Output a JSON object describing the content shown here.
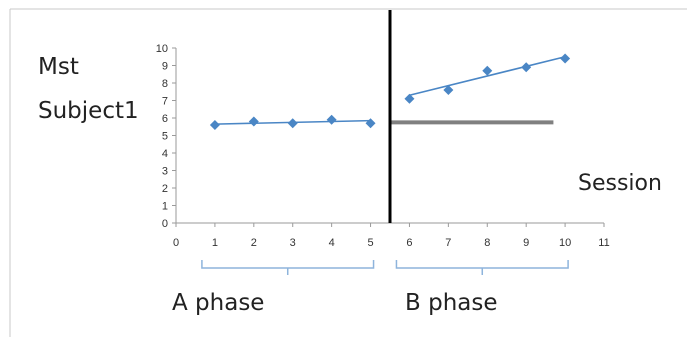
{
  "chart_data": {
    "type": "line",
    "ylabel_lines": [
      "Mst",
      "Subject1"
    ],
    "xlabel": "Session",
    "x_ticks": [
      0,
      1,
      2,
      3,
      4,
      5,
      6,
      7,
      8,
      9,
      10,
      11
    ],
    "y_ticks": [
      0,
      1,
      2,
      3,
      4,
      5,
      6,
      7,
      8,
      9,
      10
    ],
    "xlim": [
      0,
      11
    ],
    "ylim": [
      0,
      10
    ],
    "grid": false,
    "phase_change_x": 5.5,
    "series": [
      {
        "x": [
          1,
          2,
          3,
          4,
          5
        ],
        "values": [
          5.6,
          5.8,
          5.7,
          5.9,
          5.7
        ],
        "color": "#4a86c5"
      },
      {
        "x": [
          6,
          7,
          8,
          9,
          10
        ],
        "values": [
          7.1,
          7.6,
          8.7,
          8.9,
          9.4
        ],
        "color": "#4a86c5"
      }
    ],
    "trendlines": [
      {
        "x": [
          1,
          5
        ],
        "values": [
          5.65,
          5.85
        ],
        "color": "#4a86c5"
      },
      {
        "x": [
          6,
          10
        ],
        "values": [
          7.3,
          9.5
        ],
        "color": "#4a86c5"
      }
    ],
    "reference_line": {
      "x": [
        5.5,
        9.7
      ],
      "y": 5.75,
      "color": "#808080"
    },
    "phases": [
      {
        "label": "A phase",
        "from": 1,
        "to": 5
      },
      {
        "label": "B phase",
        "from": 6,
        "to": 10
      }
    ]
  }
}
